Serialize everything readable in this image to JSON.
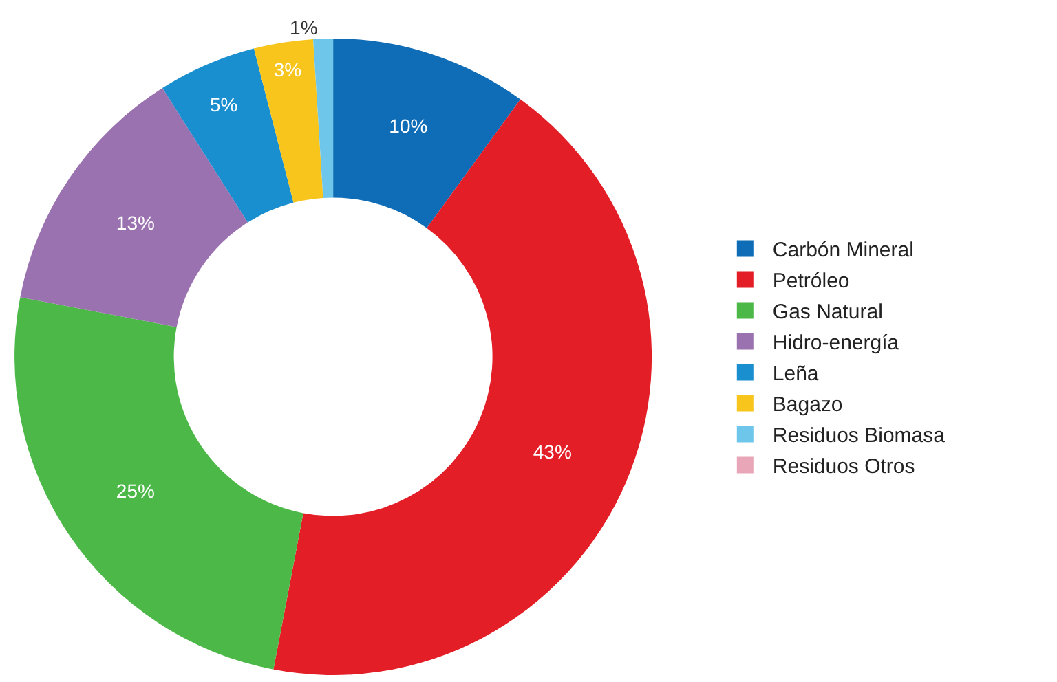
{
  "chart_data": {
    "type": "donut",
    "categories": [
      "Carbón Mineral",
      "Petróleo",
      "Gas Natural",
      "Hidro-energía",
      "Leña",
      "Bagazo",
      "Residuos Biomasa",
      "Residuos Otros"
    ],
    "values": [
      10,
      43,
      25,
      13,
      5,
      3,
      1,
      0
    ],
    "value_labels": [
      "10%",
      "43%",
      "25%",
      "13%",
      "5%",
      "3%",
      "1%",
      null
    ],
    "colors": [
      "#0f6cb6",
      "#e31e26",
      "#4cb848",
      "#9b72b0",
      "#1a8fd0",
      "#f7c51b",
      "#6ec6ea",
      "#e8a6b8"
    ],
    "legend": "right"
  }
}
